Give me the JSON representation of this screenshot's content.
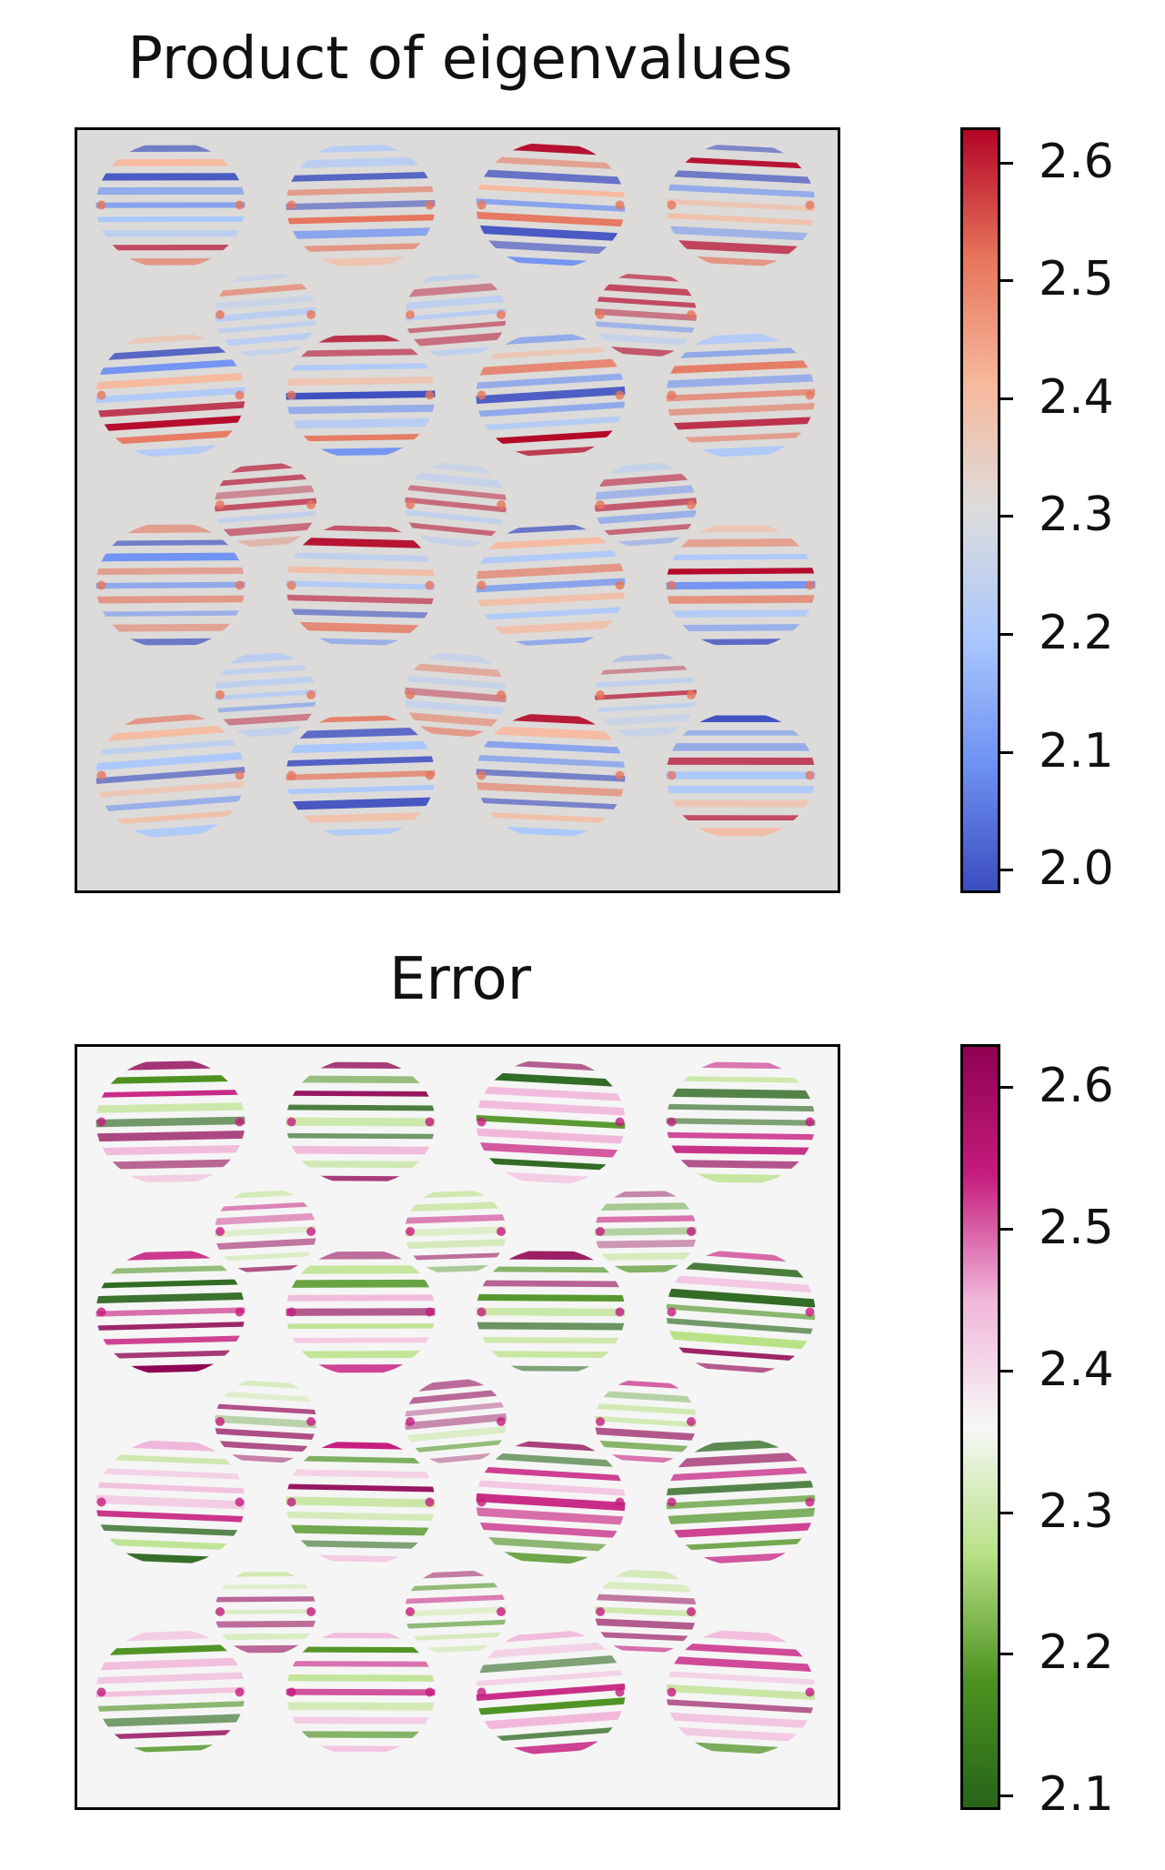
{
  "chart_data": [
    {
      "type": "heatmap",
      "title": "Product of eigenvalues",
      "xlabel": "",
      "ylabel": "",
      "colormap": "coolwarm",
      "background_value": 2.5,
      "colorbar": {
        "range": [
          1.98,
          2.63
        ],
        "ticks": [
          "2.0",
          "2.1",
          "2.2",
          "2.3",
          "2.4",
          "2.5",
          "2.6"
        ],
        "colors": [
          "#3b4cc0",
          "#6f92f3",
          "#aac7fd",
          "#dddcdc",
          "#f7b89c",
          "#e7745b",
          "#b40426"
        ]
      },
      "grid": false,
      "blob_layout": {
        "large_rows": 4,
        "large_cols": 4,
        "small_rows": 3,
        "small_cols": 3
      },
      "background_color": "#dcdbd9"
    },
    {
      "type": "heatmap",
      "title": "Error",
      "xlabel": "",
      "ylabel": "",
      "colormap": "PiYG_r",
      "background_value": 2.5,
      "colorbar": {
        "range": [
          2.09,
          2.63
        ],
        "ticks": [
          "2.1",
          "2.2",
          "2.3",
          "2.4",
          "2.5",
          "2.6"
        ],
        "colors": [
          "#276419",
          "#4d9221",
          "#b8e186",
          "#f7f7f7",
          "#f1b6da",
          "#c51b7d",
          "#8e0152"
        ]
      },
      "grid": false,
      "blob_layout": {
        "large_rows": 4,
        "large_cols": 4,
        "small_rows": 3,
        "small_cols": 3
      },
      "background_color": "#f5f5f5"
    }
  ]
}
